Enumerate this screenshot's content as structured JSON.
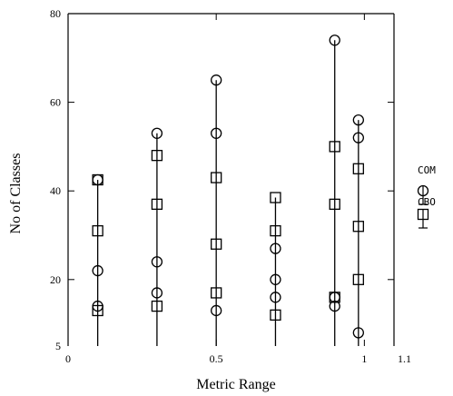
{
  "chart_data": {
    "type": "scatter",
    "title": "",
    "xlabel": "Metric Range",
    "ylabel": "No of Classes",
    "xlim": [
      0,
      1.1
    ],
    "ylim": [
      5,
      80
    ],
    "x_ticks": [
      {
        "value": 0,
        "label": "0"
      },
      {
        "value": 0.5,
        "label": "0.5"
      },
      {
        "value": 1,
        "label": "1"
      },
      {
        "value": 1.1,
        "label": "1.1"
      }
    ],
    "y_ticks": [
      {
        "value": 5,
        "label": "5"
      },
      {
        "value": 20,
        "label": "20"
      },
      {
        "value": 40,
        "label": "40"
      },
      {
        "value": 60,
        "label": "60"
      },
      {
        "value": 80,
        "label": "80"
      }
    ],
    "grid": false,
    "legend_position": "right",
    "range_lines": [
      {
        "x": 0.1,
        "ymin": 5,
        "ymax": 42.5
      },
      {
        "x": 0.3,
        "ymin": 5,
        "ymax": 53
      },
      {
        "x": 0.5,
        "ymin": 5,
        "ymax": 65
      },
      {
        "x": 0.7,
        "ymin": 5,
        "ymax": 38.5
      },
      {
        "x": 0.9,
        "ymin": 5,
        "ymax": 74
      },
      {
        "x": 0.98,
        "ymin": 5,
        "ymax": 56
      }
    ],
    "series": [
      {
        "name": "COM",
        "marker": "circle",
        "points": [
          {
            "x": 0.1,
            "y": 42.5
          },
          {
            "x": 0.1,
            "y": 22
          },
          {
            "x": 0.1,
            "y": 14
          },
          {
            "x": 0.3,
            "y": 53
          },
          {
            "x": 0.3,
            "y": 24
          },
          {
            "x": 0.3,
            "y": 17
          },
          {
            "x": 0.5,
            "y": 65
          },
          {
            "x": 0.5,
            "y": 53
          },
          {
            "x": 0.5,
            "y": 13
          },
          {
            "x": 0.7,
            "y": 27
          },
          {
            "x": 0.7,
            "y": 20
          },
          {
            "x": 0.7,
            "y": 16
          },
          {
            "x": 0.9,
            "y": 74
          },
          {
            "x": 0.9,
            "y": 16
          },
          {
            "x": 0.9,
            "y": 14
          },
          {
            "x": 0.98,
            "y": 56
          },
          {
            "x": 0.98,
            "y": 52
          },
          {
            "x": 0.98,
            "y": 8
          }
        ]
      },
      {
        "name": "CBO",
        "marker": "square",
        "points": [
          {
            "x": 0.1,
            "y": 42.5
          },
          {
            "x": 0.1,
            "y": 31
          },
          {
            "x": 0.1,
            "y": 13
          },
          {
            "x": 0.3,
            "y": 48
          },
          {
            "x": 0.3,
            "y": 37
          },
          {
            "x": 0.3,
            "y": 14
          },
          {
            "x": 0.5,
            "y": 43
          },
          {
            "x": 0.5,
            "y": 28
          },
          {
            "x": 0.5,
            "y": 17
          },
          {
            "x": 0.7,
            "y": 38.5
          },
          {
            "x": 0.7,
            "y": 31
          },
          {
            "x": 0.7,
            "y": 12
          },
          {
            "x": 0.9,
            "y": 50
          },
          {
            "x": 0.9,
            "y": 37
          },
          {
            "x": 0.9,
            "y": 16
          },
          {
            "x": 0.98,
            "y": 45
          },
          {
            "x": 0.98,
            "y": 32
          },
          {
            "x": 0.98,
            "y": 20
          }
        ]
      }
    ]
  }
}
